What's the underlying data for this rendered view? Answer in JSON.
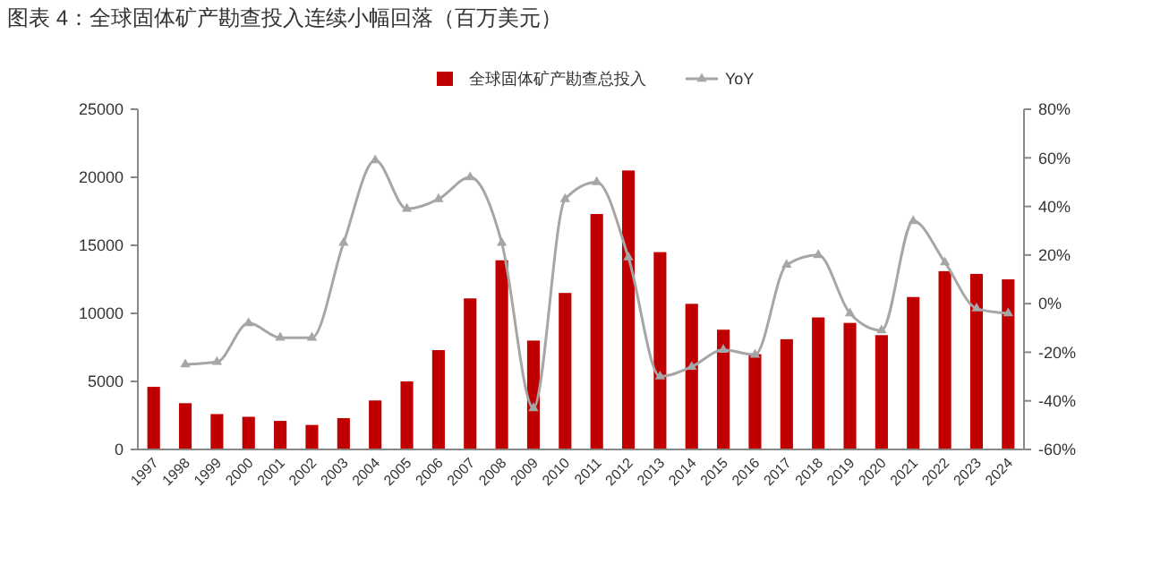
{
  "chart_data": {
    "type": "bar",
    "title": "图表 4：全球固体矿产勘查投入连续小幅回落（百万美元）",
    "categories": [
      "1997",
      "1998",
      "1999",
      "2000",
      "2001",
      "2002",
      "2003",
      "2004",
      "2005",
      "2006",
      "2007",
      "2008",
      "2009",
      "2010",
      "2011",
      "2012",
      "2013",
      "2014",
      "2015",
      "2016",
      "2017",
      "2018",
      "2019",
      "2020",
      "2021",
      "2022",
      "2023",
      "2024"
    ],
    "series": [
      {
        "name": "全球固体矿产勘查总投入",
        "color": "#c00000",
        "values": [
          4600,
          3400,
          2600,
          2400,
          2100,
          1800,
          2300,
          3600,
          5000,
          7300,
          11100,
          13900,
          8000,
          11500,
          17300,
          20500,
          14500,
          10700,
          8800,
          7000,
          8100,
          9700,
          9300,
          8400,
          11200,
          13100,
          12900,
          12500
        ]
      },
      {
        "name": "YoY",
        "type": "line",
        "axis": "y2",
        "color": "#a6a6a6",
        "marker": "triangle",
        "values": [
          null,
          -25,
          -24,
          -8,
          -14,
          -14,
          25,
          59,
          39,
          43,
          52,
          25,
          -43,
          43,
          50,
          19,
          -30,
          -26,
          -19,
          -21,
          16,
          20,
          -4,
          -11,
          34,
          17,
          -2,
          -4
        ]
      }
    ],
    "ylim": [
      0,
      25000
    ],
    "yticks": [
      0,
      5000,
      10000,
      15000,
      20000,
      25000
    ],
    "y2lim": [
      -60,
      80
    ],
    "y2ticks": [
      {
        "value": -60,
        "label": "-60%"
      },
      {
        "value": -40,
        "label": "-40%"
      },
      {
        "value": -20,
        "label": "-20%"
      },
      {
        "value": 0,
        "label": "0%"
      },
      {
        "value": 20,
        "label": "20%"
      },
      {
        "value": 40,
        "label": "40%"
      },
      {
        "value": 60,
        "label": "60%"
      },
      {
        "value": 80,
        "label": "80%"
      }
    ],
    "legend": "top",
    "grid": false
  }
}
